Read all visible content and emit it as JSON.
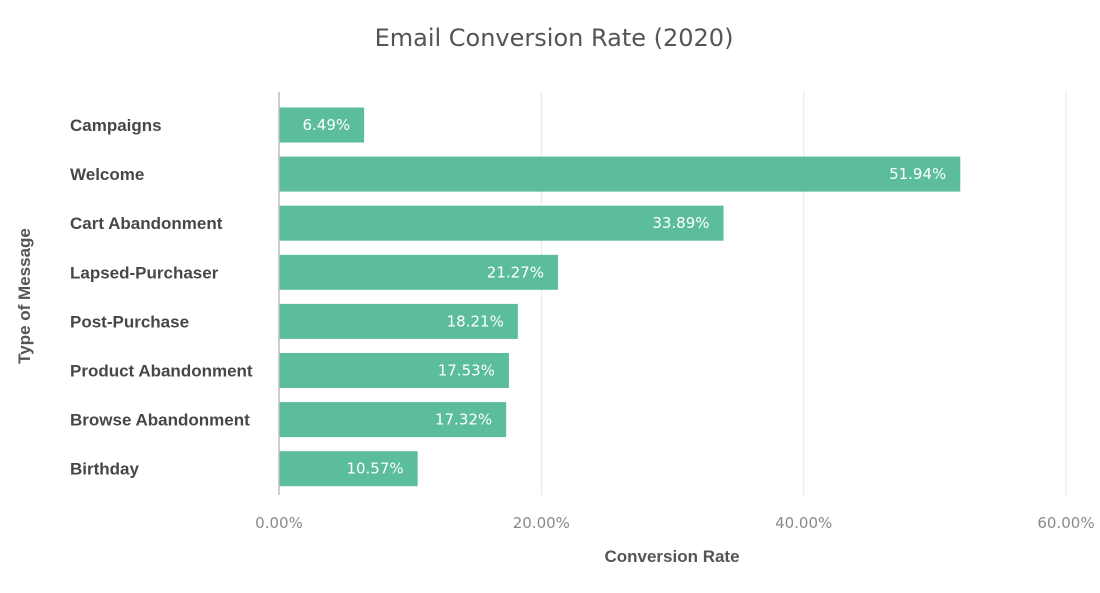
{
  "chart_data": {
    "type": "bar",
    "orientation": "horizontal",
    "title": "Email Conversion Rate (2020)",
    "xlabel": "Conversion Rate",
    "ylabel": "Type of Message",
    "categories": [
      "Campaigns",
      "Welcome",
      "Cart Abandonment",
      "Lapsed-Purchaser",
      "Post-Purchase",
      "Product Abandonment",
      "Browse Abandonment",
      "Birthday"
    ],
    "values": [
      6.49,
      51.94,
      33.89,
      21.27,
      18.21,
      17.53,
      17.32,
      10.57
    ],
    "value_labels": [
      "6.49%",
      "51.94%",
      "33.89%",
      "21.27%",
      "18.21%",
      "17.53%",
      "17.32%",
      "10.57%"
    ],
    "xlim": [
      0,
      60
    ],
    "x_ticks": [
      0,
      20,
      40,
      60
    ],
    "x_tick_labels": [
      "0.00%",
      "20.00%",
      "40.00%",
      "60.00%"
    ],
    "grid": true,
    "legend": "none",
    "colors": {
      "bar": "#5cbd9b",
      "title": "#555555",
      "category_label": "#474747",
      "tick_label": "#8a8a8a",
      "gridline": "#e6e6e6",
      "value_label": "#ffffff"
    }
  }
}
